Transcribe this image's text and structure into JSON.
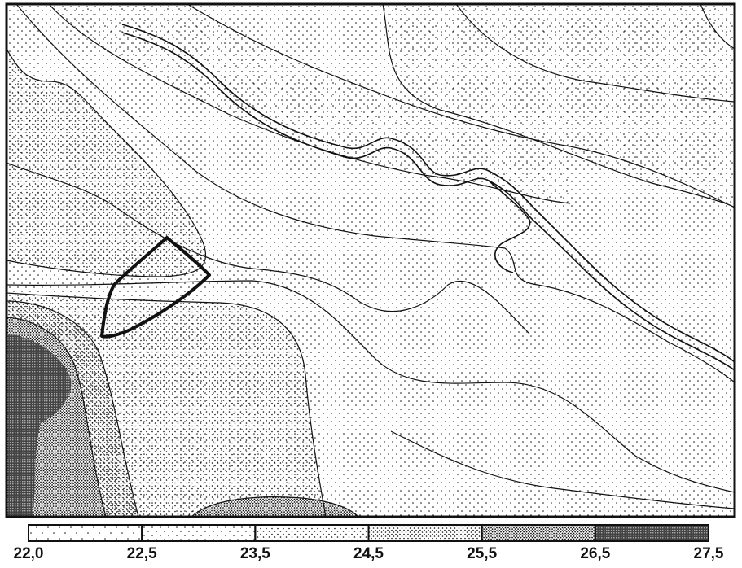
{
  "map": {
    "ink_color": "#111111",
    "paper_color": "#ffffff",
    "border": true
  },
  "legend": {
    "bins": [
      {
        "from": "22,0",
        "to": "22,5",
        "shade_level": 1
      },
      {
        "from": "22,5",
        "to": "23,5",
        "shade_level": 2
      },
      {
        "from": "23,5",
        "to": "24,5",
        "shade_level": 3
      },
      {
        "from": "24,5",
        "to": "25,5",
        "shade_level": 4
      },
      {
        "from": "25,5",
        "to": "26,5",
        "shade_level": 5
      },
      {
        "from": "26,5",
        "to": "27,5",
        "shade_level": 6
      }
    ],
    "tick_labels": [
      "22,0",
      "22,5",
      "23,5",
      "24,5",
      "25,5",
      "26,5",
      "27,5"
    ]
  }
}
